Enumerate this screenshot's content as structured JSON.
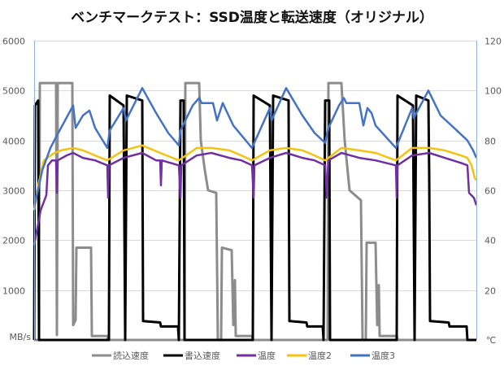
{
  "chart_data": {
    "type": "line",
    "title": "ベンチマークテスト：SSD温度と転送速度（オリジナル）",
    "ylabel": "MB/s",
    "y2label": "℃",
    "xlabel": "",
    "ylim": [
      0,
      6000
    ],
    "y2lim": [
      0,
      120
    ],
    "yticks": [
      "1000",
      "2000",
      "3000",
      "4000",
      "5000",
      "6000"
    ],
    "y2ticks": [
      "20",
      "40",
      "60",
      "80",
      "100",
      "120"
    ],
    "xlim": [
      0,
      544
    ],
    "grid": true,
    "legend_position": "bottom",
    "series": [
      {
        "name": "読込速度",
        "axis": "left",
        "color": "#8c8c8c",
        "points": [
          [
            0,
            0
          ],
          [
            6,
            0
          ],
          [
            7,
            5150
          ],
          [
            27,
            5150
          ],
          [
            28,
            100
          ],
          [
            29,
            5150
          ],
          [
            47,
            5150
          ],
          [
            48,
            300
          ],
          [
            51,
            400
          ],
          [
            52,
            1850
          ],
          [
            70,
            1850
          ],
          [
            71,
            80
          ],
          [
            90,
            80
          ],
          [
            91,
            0
          ],
          [
            185,
            0
          ],
          [
            186,
            5150
          ],
          [
            203,
            5150
          ],
          [
            205,
            4000
          ],
          [
            210,
            3400
          ],
          [
            214,
            3000
          ],
          [
            224,
            2950
          ],
          [
            226,
            0
          ],
          [
            230,
            0
          ],
          [
            231,
            1850
          ],
          [
            243,
            1800
          ],
          [
            245,
            300
          ],
          [
            247,
            1200
          ],
          [
            248,
            80
          ],
          [
            268,
            80
          ],
          [
            269,
            0
          ],
          [
            361,
            0
          ],
          [
            362,
            5150
          ],
          [
            378,
            5150
          ],
          [
            382,
            4000
          ],
          [
            388,
            3000
          ],
          [
            402,
            2800
          ],
          [
            404,
            0
          ],
          [
            408,
            0
          ],
          [
            409,
            1950
          ],
          [
            420,
            1950
          ],
          [
            422,
            300
          ],
          [
            424,
            1100
          ],
          [
            425,
            80
          ],
          [
            446,
            80
          ],
          [
            447,
            0
          ],
          [
            544,
            0
          ]
        ]
      },
      {
        "name": "書込速度",
        "axis": "left",
        "color": "#000000",
        "points": [
          [
            0,
            0
          ],
          [
            1,
            4700
          ],
          [
            5,
            4800
          ],
          [
            6,
            0
          ],
          [
            92,
            0
          ],
          [
            93,
            4900
          ],
          [
            110,
            4700
          ],
          [
            112,
            0
          ],
          [
            114,
            4900
          ],
          [
            133,
            4800
          ],
          [
            134,
            380
          ],
          [
            155,
            350
          ],
          [
            156,
            270
          ],
          [
            177,
            270
          ],
          [
            178,
            0
          ],
          [
            180,
            4800
          ],
          [
            184,
            4800
          ],
          [
            185,
            0
          ],
          [
            269,
            0
          ],
          [
            270,
            4900
          ],
          [
            290,
            4700
          ],
          [
            292,
            0
          ],
          [
            294,
            4900
          ],
          [
            313,
            4800
          ],
          [
            314,
            380
          ],
          [
            335,
            350
          ],
          [
            336,
            270
          ],
          [
            355,
            270
          ],
          [
            356,
            0
          ],
          [
            358,
            4800
          ],
          [
            363,
            4800
          ],
          [
            364,
            0
          ],
          [
            446,
            0
          ],
          [
            447,
            4900
          ],
          [
            466,
            4700
          ],
          [
            468,
            0
          ],
          [
            470,
            4900
          ],
          [
            485,
            4800
          ],
          [
            486,
            3300
          ],
          [
            487,
            380
          ],
          [
            510,
            350
          ],
          [
            511,
            270
          ],
          [
            532,
            270
          ],
          [
            533,
            0
          ],
          [
            544,
            0
          ]
        ]
      },
      {
        "name": "温度",
        "axis": "right",
        "color": "#7030a0",
        "points": [
          [
            0,
            38
          ],
          [
            8,
            52
          ],
          [
            15,
            58
          ],
          [
            17,
            70
          ],
          [
            22,
            72
          ],
          [
            27,
            72
          ],
          [
            28,
            59
          ],
          [
            29,
            72
          ],
          [
            40,
            74
          ],
          [
            48,
            75
          ],
          [
            60,
            73
          ],
          [
            75,
            72
          ],
          [
            90,
            70
          ],
          [
            91,
            57
          ],
          [
            92,
            70
          ],
          [
            110,
            73
          ],
          [
            133,
            75
          ],
          [
            150,
            72
          ],
          [
            155,
            72
          ],
          [
            156,
            62
          ],
          [
            157,
            72
          ],
          [
            178,
            70
          ],
          [
            180,
            57
          ],
          [
            181,
            70
          ],
          [
            200,
            74
          ],
          [
            218,
            75
          ],
          [
            240,
            73
          ],
          [
            255,
            72
          ],
          [
            268,
            70
          ],
          [
            270,
            57
          ],
          [
            271,
            70
          ],
          [
            290,
            73
          ],
          [
            310,
            75
          ],
          [
            330,
            73
          ],
          [
            345,
            72
          ],
          [
            358,
            70
          ],
          [
            360,
            57
          ],
          [
            362,
            72
          ],
          [
            378,
            75
          ],
          [
            400,
            73
          ],
          [
            420,
            72
          ],
          [
            445,
            70
          ],
          [
            446,
            57
          ],
          [
            447,
            70
          ],
          [
            465,
            74
          ],
          [
            486,
            75
          ],
          [
            505,
            73
          ],
          [
            525,
            71
          ],
          [
            533,
            70
          ],
          [
            535,
            59
          ],
          [
            541,
            57
          ],
          [
            544,
            54
          ]
        ]
      },
      {
        "name": "温度2",
        "axis": "right",
        "color": "#f5c20f",
        "points": [
          [
            0,
            52
          ],
          [
            5,
            62
          ],
          [
            12,
            72
          ],
          [
            25,
            75
          ],
          [
            33,
            76
          ],
          [
            48,
            77
          ],
          [
            60,
            76
          ],
          [
            75,
            74
          ],
          [
            90,
            72
          ],
          [
            110,
            76
          ],
          [
            133,
            78
          ],
          [
            155,
            75
          ],
          [
            178,
            72
          ],
          [
            200,
            77
          ],
          [
            218,
            77
          ],
          [
            240,
            76
          ],
          [
            255,
            74
          ],
          [
            268,
            72
          ],
          [
            290,
            76
          ],
          [
            310,
            77
          ],
          [
            330,
            76
          ],
          [
            345,
            74
          ],
          [
            358,
            72
          ],
          [
            378,
            77
          ],
          [
            400,
            76
          ],
          [
            420,
            75
          ],
          [
            445,
            72
          ],
          [
            465,
            77
          ],
          [
            486,
            77
          ],
          [
            505,
            76
          ],
          [
            525,
            74
          ],
          [
            533,
            73
          ],
          [
            538,
            70
          ],
          [
            542,
            65
          ],
          [
            544,
            64
          ]
        ]
      },
      {
        "name": "温度3",
        "axis": "right",
        "color": "#4472c4",
        "points": [
          [
            0,
            53
          ],
          [
            10,
            68
          ],
          [
            20,
            77
          ],
          [
            28,
            82
          ],
          [
            38,
            88
          ],
          [
            48,
            94
          ],
          [
            51,
            85
          ],
          [
            60,
            90
          ],
          [
            68,
            92
          ],
          [
            75,
            85
          ],
          [
            90,
            77
          ],
          [
            93,
            84
          ],
          [
            110,
            93
          ],
          [
            113,
            88
          ],
          [
            133,
            101
          ],
          [
            150,
            91
          ],
          [
            165,
            83
          ],
          [
            178,
            78
          ],
          [
            180,
            84
          ],
          [
            195,
            94
          ],
          [
            203,
            97
          ],
          [
            206,
            95
          ],
          [
            220,
            95
          ],
          [
            225,
            88
          ],
          [
            230,
            93
          ],
          [
            232,
            95
          ],
          [
            245,
            86
          ],
          [
            268,
            77
          ],
          [
            290,
            93
          ],
          [
            292,
            88
          ],
          [
            310,
            101
          ],
          [
            330,
            90
          ],
          [
            345,
            83
          ],
          [
            358,
            79
          ],
          [
            362,
            85
          ],
          [
            375,
            94
          ],
          [
            381,
            97
          ],
          [
            384,
            95
          ],
          [
            400,
            95
          ],
          [
            405,
            86
          ],
          [
            410,
            93
          ],
          [
            415,
            91
          ],
          [
            420,
            86
          ],
          [
            445,
            77
          ],
          [
            465,
            93
          ],
          [
            467,
            89
          ],
          [
            485,
            100
          ],
          [
            500,
            90
          ],
          [
            520,
            84
          ],
          [
            533,
            80
          ],
          [
            540,
            76
          ],
          [
            544,
            73
          ]
        ]
      }
    ]
  }
}
